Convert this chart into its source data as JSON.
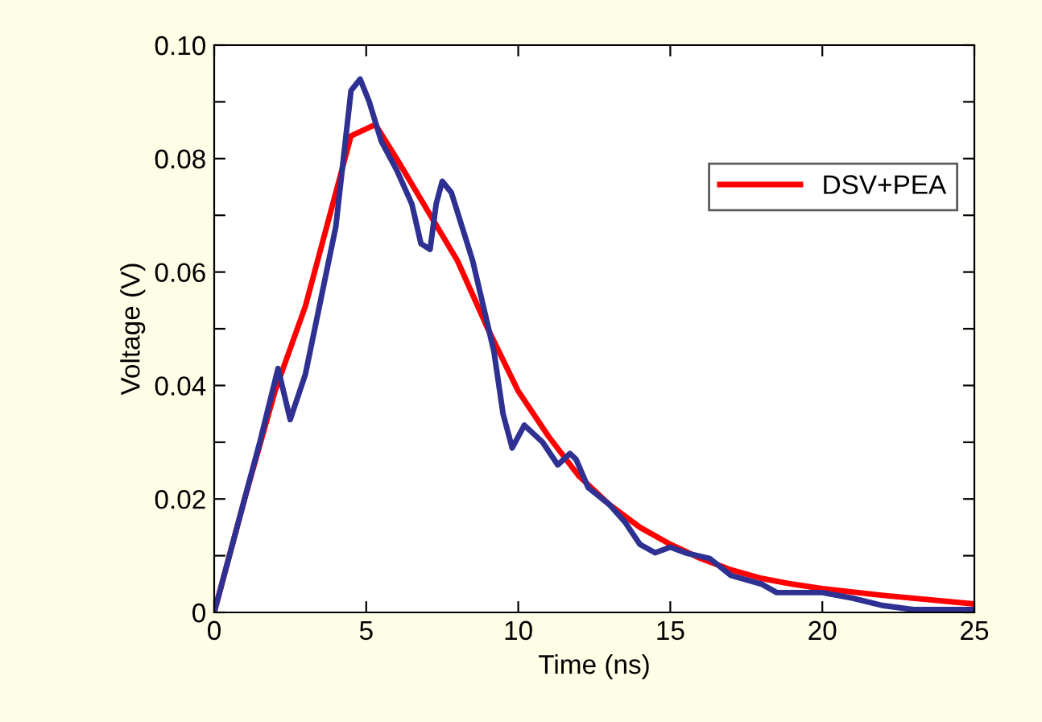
{
  "chart_data": {
    "type": "line",
    "xlabel": "Time (ns)",
    "ylabel": "Voltage (V)",
    "xlim": [
      0,
      25
    ],
    "xticks": [
      0,
      5,
      10,
      15,
      20,
      25
    ],
    "ylim": [
      0,
      0.1
    ],
    "yticks": [
      {
        "value": 0,
        "label": "0"
      },
      {
        "value": 0.01,
        "label": null
      },
      {
        "value": 0.02,
        "label": "0.02"
      },
      {
        "value": 0.03,
        "label": null
      },
      {
        "value": 0.04,
        "label": "0.04"
      },
      {
        "value": 0.05,
        "label": null
      },
      {
        "value": 0.06,
        "label": "0.06"
      },
      {
        "value": 0.07,
        "label": null
      },
      {
        "value": 0.08,
        "label": "0.08"
      },
      {
        "value": 0.09,
        "label": null
      },
      {
        "value": 0.1,
        "label": "0.10"
      }
    ],
    "grid": false,
    "legend": "right",
    "marker": "none",
    "line_style": "solid",
    "series": [
      {
        "name": "DSV+PEA",
        "color": "#ff0000",
        "x": [
          0,
          1,
          2,
          3,
          4.5,
          5.3,
          6,
          7,
          8,
          9,
          10,
          11,
          12,
          13,
          14,
          15,
          16,
          17,
          18,
          19,
          20,
          22,
          25
        ],
        "values": [
          0,
          0.02,
          0.039,
          0.054,
          0.084,
          0.086,
          0.08,
          0.071,
          0.062,
          0.05,
          0.039,
          0.031,
          0.024,
          0.019,
          0.015,
          0.012,
          0.0095,
          0.0075,
          0.006,
          0.005,
          0.0042,
          0.003,
          0.0015
        ]
      },
      {
        "color": "#2e3192",
        "x": [
          0,
          1,
          1.5,
          2.1,
          2.5,
          3,
          3.5,
          4,
          4.5,
          4.8,
          5.1,
          5.5,
          6,
          6.5,
          6.8,
          7.1,
          7.3,
          7.5,
          7.8,
          8.5,
          9.2,
          9.5,
          9.8,
          10.2,
          10.8,
          11.3,
          11.7,
          11.9,
          12.3,
          13,
          13.5,
          14,
          14.5,
          15,
          15.5,
          16.3,
          17,
          18,
          18.5,
          19,
          20,
          21,
          22,
          23,
          25
        ],
        "values": [
          0,
          0.02,
          0.03,
          0.043,
          0.034,
          0.042,
          0.055,
          0.068,
          0.092,
          0.094,
          0.09,
          0.083,
          0.078,
          0.072,
          0.065,
          0.064,
          0.072,
          0.076,
          0.074,
          0.062,
          0.046,
          0.035,
          0.029,
          0.033,
          0.03,
          0.026,
          0.028,
          0.027,
          0.022,
          0.019,
          0.016,
          0.012,
          0.0105,
          0.0115,
          0.0105,
          0.0095,
          0.0065,
          0.005,
          0.0035,
          0.0035,
          0.0035,
          0.0025,
          0.0012,
          0.0005,
          0.0005
        ]
      }
    ]
  }
}
